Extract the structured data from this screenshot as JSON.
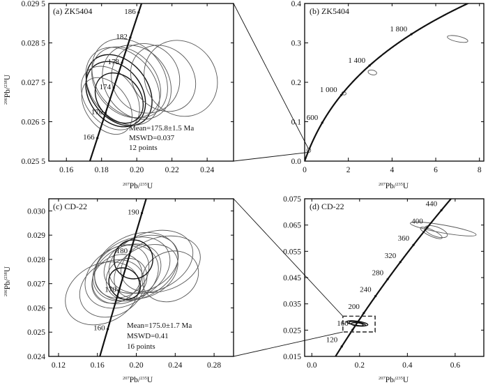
{
  "chart_data": [
    {
      "id": "a",
      "type": "scatter",
      "title": "(a) ZK5404",
      "xlabel": {
        "sup": "207",
        "base": "Pb/",
        "sup2": "235",
        "end": "U"
      },
      "ylabel": {
        "sup": "206",
        "base": "Pb/",
        "sup2": "238",
        "end": "U"
      },
      "xlim": [
        0.15,
        0.255
      ],
      "ylim": [
        0.0255,
        0.0295
      ],
      "xticks": [
        "0.16",
        "0.18",
        "0.20",
        "0.22",
        "0.24"
      ],
      "yticks": [
        "0.025 5",
        "0.026 5",
        "0.027 5",
        "0.028 5",
        "0.029 5"
      ],
      "annotations": [
        "Mean=175.8±1.5 Ma",
        "MSWD=0.037",
        "12 points"
      ],
      "concordia_ages": [
        "166",
        "170",
        "174",
        "178",
        "182",
        "186"
      ],
      "ellipses": [
        {
          "x": 0.19,
          "y": 0.0273,
          "rx": 0.016,
          "ry": 0.001,
          "rot": 38
        },
        {
          "x": 0.192,
          "y": 0.0274,
          "rx": 0.018,
          "ry": 0.0011,
          "rot": 40
        },
        {
          "x": 0.188,
          "y": 0.0272,
          "rx": 0.015,
          "ry": 0.0009,
          "rot": 36
        },
        {
          "x": 0.194,
          "y": 0.0275,
          "rx": 0.017,
          "ry": 0.001,
          "rot": 42
        },
        {
          "x": 0.196,
          "y": 0.0276,
          "rx": 0.019,
          "ry": 0.0011,
          "rot": 40
        },
        {
          "x": 0.185,
          "y": 0.0271,
          "rx": 0.014,
          "ry": 0.0009,
          "rot": 38
        },
        {
          "x": 0.2,
          "y": 0.0275,
          "rx": 0.018,
          "ry": 0.001,
          "rot": 35
        },
        {
          "x": 0.205,
          "y": 0.0276,
          "rx": 0.019,
          "ry": 0.0009,
          "rot": 36
        },
        {
          "x": 0.19,
          "y": 0.0271,
          "rx": 0.012,
          "ry": 0.0007,
          "rot": 40
        },
        {
          "x": 0.215,
          "y": 0.0276,
          "rx": 0.017,
          "ry": 0.0009,
          "rot": 42
        },
        {
          "x": 0.225,
          "y": 0.0276,
          "rx": 0.02,
          "ry": 0.001,
          "rot": 36
        },
        {
          "x": 0.183,
          "y": 0.0269,
          "rx": 0.012,
          "ry": 0.0008,
          "rot": 36
        }
      ]
    },
    {
      "id": "b",
      "type": "scatter",
      "title": "(b) ZK5404",
      "xlabel": {
        "sup": "207",
        "base": "Pb/",
        "sup2": "235",
        "end": "U"
      },
      "xlim": [
        0,
        8.2
      ],
      "ylim": [
        0,
        0.4
      ],
      "xticks": [
        "0",
        "2",
        "4",
        "6",
        "8"
      ],
      "yticks": [
        "0.0",
        "0.1",
        "0.2",
        "0.3",
        "0.4"
      ],
      "concordia_ages": [
        "600",
        "1 000",
        "1 400",
        "1 800"
      ],
      "ellipses": [
        {
          "x": 7.0,
          "y": 0.31,
          "rx": 0.48,
          "ry": 0.007,
          "rot": -12
        },
        {
          "x": 3.1,
          "y": 0.225,
          "rx": 0.2,
          "ry": 0.006,
          "rot": -12
        },
        {
          "x": 1.8,
          "y": 0.172,
          "rx": 0.1,
          "ry": 0.004,
          "rot": -15
        },
        {
          "x": 0.19,
          "y": 0.0275,
          "rx": 0.09,
          "ry": 0.0055,
          "rot": 0
        }
      ]
    },
    {
      "id": "c",
      "type": "scatter",
      "title": "(c) CD-22",
      "xlabel": {
        "sup": "207",
        "base": "Pb/",
        "sup2": "235",
        "end": "U"
      },
      "ylabel": {
        "sup": "206",
        "base": "Pb/",
        "sup2": "238",
        "end": "U"
      },
      "xlim": [
        0.11,
        0.3
      ],
      "ylim": [
        0.024,
        0.0305
      ],
      "xticks": [
        "0.12",
        "0.16",
        "0.20",
        "0.24",
        "0.28"
      ],
      "yticks": [
        "0.024",
        "0.025",
        "0.026",
        "0.027",
        "0.028",
        "0.029",
        "0.030"
      ],
      "annotations": [
        "Mean=175.0±1.7 Ma",
        "MSWD=0.41",
        "16 points"
      ],
      "concordia_ages": [
        "160",
        "170",
        "180",
        "190"
      ],
      "ellipses": [
        {
          "x": 0.185,
          "y": 0.0273,
          "rx": 0.04,
          "ry": 0.0012,
          "rot": 30
        },
        {
          "x": 0.19,
          "y": 0.0274,
          "rx": 0.038,
          "ry": 0.0011,
          "rot": 32
        },
        {
          "x": 0.195,
          "y": 0.0276,
          "rx": 0.042,
          "ry": 0.0012,
          "rot": 28
        },
        {
          "x": 0.2,
          "y": 0.0277,
          "rx": 0.045,
          "ry": 0.0013,
          "rot": 26
        },
        {
          "x": 0.185,
          "y": 0.0275,
          "rx": 0.03,
          "ry": 0.001,
          "rot": 40
        },
        {
          "x": 0.18,
          "y": 0.0272,
          "rx": 0.028,
          "ry": 0.0009,
          "rot": 42
        },
        {
          "x": 0.19,
          "y": 0.0272,
          "rx": 0.022,
          "ry": 0.0008,
          "rot": 45
        },
        {
          "x": 0.205,
          "y": 0.0278,
          "rx": 0.04,
          "ry": 0.0011,
          "rot": 24
        },
        {
          "x": 0.215,
          "y": 0.0279,
          "rx": 0.045,
          "ry": 0.0012,
          "rot": 22
        },
        {
          "x": 0.175,
          "y": 0.0268,
          "rx": 0.035,
          "ry": 0.0011,
          "rot": 30
        },
        {
          "x": 0.165,
          "y": 0.0266,
          "rx": 0.04,
          "ry": 0.0012,
          "rot": 28
        },
        {
          "x": 0.225,
          "y": 0.0278,
          "rx": 0.042,
          "ry": 0.0011,
          "rot": 18
        },
        {
          "x": 0.235,
          "y": 0.0273,
          "rx": 0.03,
          "ry": 0.001,
          "rot": 28
        },
        {
          "x": 0.188,
          "y": 0.027,
          "rx": 0.015,
          "ry": 0.0007,
          "rot": 45
        },
        {
          "x": 0.197,
          "y": 0.028,
          "rx": 0.02,
          "ry": 0.0008,
          "rot": 48
        },
        {
          "x": 0.21,
          "y": 0.0275,
          "rx": 0.035,
          "ry": 0.001,
          "rot": 30
        }
      ]
    },
    {
      "id": "d",
      "type": "scatter",
      "title": "(d) CD-22",
      "xlabel": {
        "sup": "207",
        "base": "Pb/",
        "sup2": "235",
        "end": "U"
      },
      "xlim": [
        -0.03,
        0.72
      ],
      "ylim": [
        0.015,
        0.075
      ],
      "xticks": [
        "0.0",
        "0.2",
        "0.4",
        "0.6"
      ],
      "yticks": [
        "0.015",
        "0.025",
        "0.035",
        "0.045",
        "0.055",
        "0.065",
        "0.075"
      ],
      "concordia_ages": [
        "120",
        "160",
        "200",
        "240",
        "280",
        "320",
        "360",
        "400",
        "440"
      ],
      "ellipses": [
        {
          "x": 0.55,
          "y": 0.0635,
          "rx": 0.14,
          "ry": 0.0015,
          "rot": -10
        },
        {
          "x": 0.52,
          "y": 0.0625,
          "rx": 0.05,
          "ry": 0.0018,
          "rot": -20
        },
        {
          "x": 0.5,
          "y": 0.062,
          "rx": 0.05,
          "ry": 0.0012,
          "rot": -25
        },
        {
          "x": 0.19,
          "y": 0.0276,
          "rx": 0.045,
          "ry": 0.0008,
          "rot": -8
        },
        {
          "x": 0.19,
          "y": 0.0274,
          "rx": 0.035,
          "ry": 0.0007,
          "rot": -10
        },
        {
          "x": 0.19,
          "y": 0.0272,
          "rx": 0.025,
          "ry": 0.0006,
          "rot": -6
        }
      ]
    }
  ]
}
